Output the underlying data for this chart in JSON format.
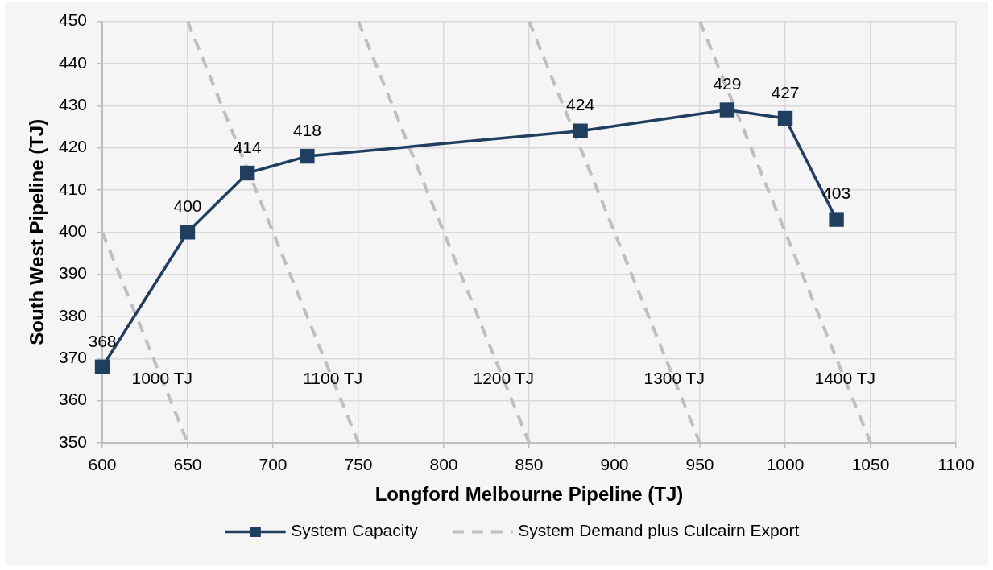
{
  "chart_data": {
    "type": "line",
    "xlabel": "Longford Melbourne Pipeline (TJ)",
    "ylabel": "South West Pipeline (TJ)",
    "xlim": [
      600,
      1100
    ],
    "xticks": [
      600,
      650,
      700,
      750,
      800,
      850,
      900,
      950,
      1000,
      1050,
      1100
    ],
    "ylim": [
      350,
      450
    ],
    "yticks": [
      350,
      360,
      370,
      380,
      390,
      400,
      410,
      420,
      430,
      440,
      450
    ],
    "grid": true,
    "legend": "bottom",
    "series": [
      {
        "name": "System Capacity",
        "color": "#1f3e60",
        "marker": "square",
        "x": [
          600,
          650,
          685,
          720,
          880,
          966,
          1000,
          1030
        ],
        "values": [
          368,
          400,
          414,
          418,
          424,
          429,
          427,
          403
        ],
        "value_labels": [
          "368",
          "400",
          "414",
          "418",
          "424",
          "429",
          "427",
          "403"
        ]
      },
      {
        "name": "System Demand plus Culcairn Export",
        "color": "#bfbfbf",
        "line_style": "dashed",
        "x": [
          600,
          650
        ],
        "values": [
          400,
          350
        ]
      },
      {
        "color": "#bfbfbf",
        "line_style": "dashed",
        "x": [
          650,
          750
        ],
        "values": [
          450,
          350
        ]
      },
      {
        "color": "#bfbfbf",
        "line_style": "dashed",
        "x": [
          750,
          850
        ],
        "values": [
          450,
          350
        ]
      },
      {
        "color": "#bfbfbf",
        "line_style": "dashed",
        "x": [
          850,
          950
        ],
        "values": [
          450,
          350
        ]
      },
      {
        "color": "#bfbfbf",
        "line_style": "dashed",
        "x": [
          950,
          1050
        ],
        "values": [
          450,
          350
        ]
      }
    ],
    "annotations": [
      {
        "text": "1000 TJ",
        "x": 635,
        "y": 365
      },
      {
        "text": "1100 TJ",
        "x": 735,
        "y": 365
      },
      {
        "text": "1200 TJ",
        "x": 835,
        "y": 365
      },
      {
        "text": "1300 TJ",
        "x": 935,
        "y": 365
      },
      {
        "text": "1400 TJ",
        "x": 1035,
        "y": 365
      }
    ]
  }
}
